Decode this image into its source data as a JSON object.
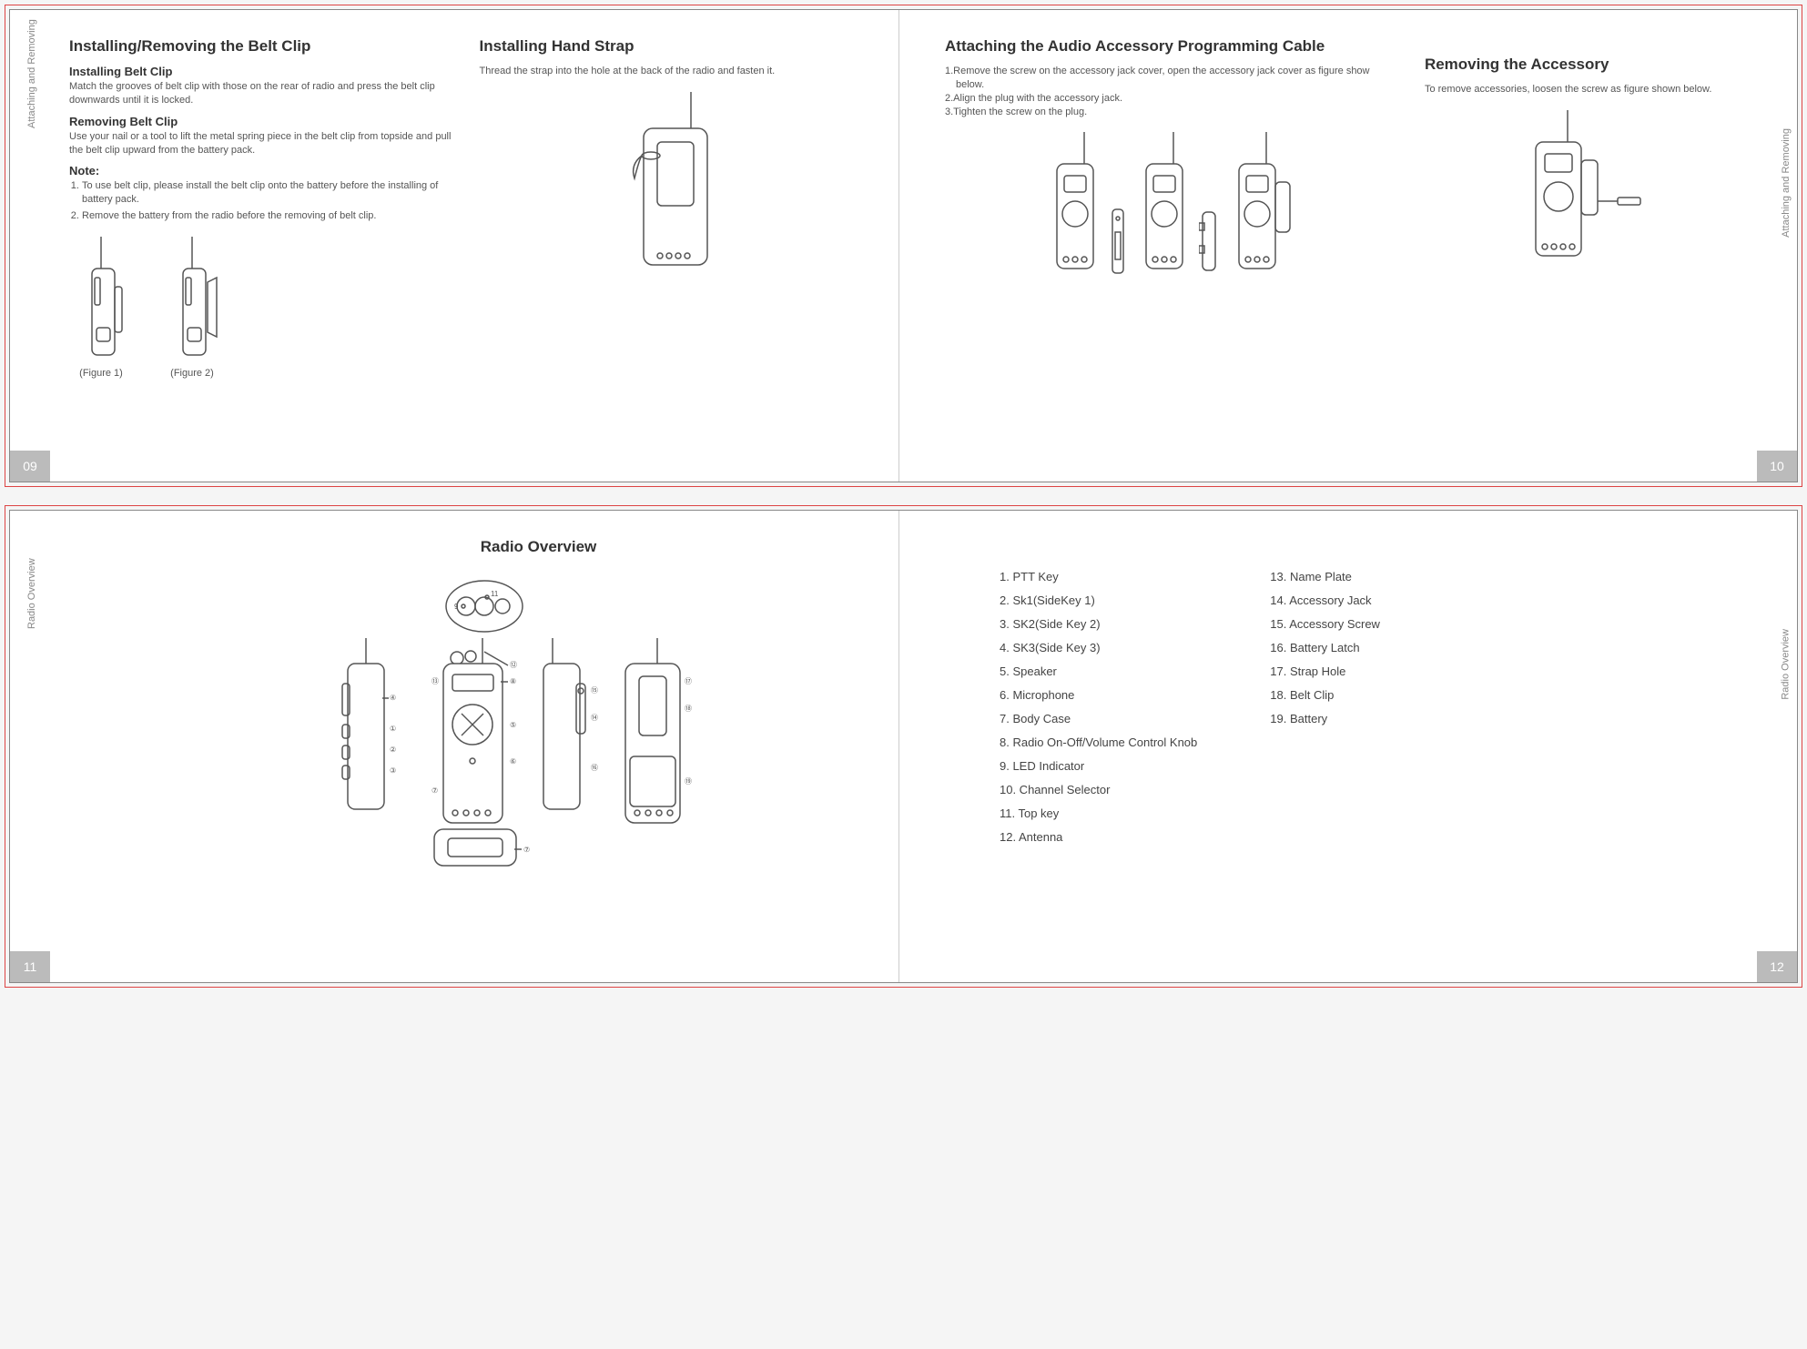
{
  "spread1": {
    "side_label_left": "Attaching and Removing",
    "side_label_right": "Attaching and Removing",
    "page_left_num": "09",
    "page_right_num": "10",
    "page_left": {
      "col1": {
        "h2": "Installing/Removing the Belt Clip",
        "h3a": "Installing Belt Clip",
        "p_a": "Match the grooves of belt clip with those on the rear of radio and press the belt clip downwards until it is locked.",
        "h3b": "Removing Belt Clip",
        "p_b": "Use your nail or a tool to lift the metal spring piece in the belt clip from topside and pull the belt clip upward from the battery pack.",
        "note_label": "Note:",
        "note1": "To use belt clip, please install the belt clip onto the battery before the installing of battery pack.",
        "note2": "Remove the battery from the radio before the removing of belt clip.",
        "fig1": "(Figure 1)",
        "fig2": "(Figure 2)"
      },
      "col2": {
        "h2": "Installing  Hand Strap",
        "p": "Thread the strap into the hole at the back of the radio and fasten it."
      }
    },
    "page_right": {
      "col1": {
        "h2": "Attaching the Audio Accessory Programming Cable",
        "step1": "1.Remove the screw on the accessory jack cover, open the accessory jack cover as figure show below.",
        "step2": "2.Align the plug with the accessory jack.",
        "step3": "3.Tighten the screw on the plug."
      },
      "col2": {
        "h2": "Removing the Accessory",
        "p": "To remove accessories, loosen the screw as figure shown below."
      }
    }
  },
  "spread2": {
    "side_label_left": "Radio Overview",
    "side_label_right": "Radio Overview",
    "page_left_num": "11",
    "page_right_num": "12",
    "title": "Radio Overview",
    "legend_col1": [
      "1.   PTT  Key",
      "2.   Sk1(SideKey  1)",
      "3.   SK2(Side Key 2)",
      "4.   SK3(Side Key 3)",
      "5.   Speaker",
      "6.   Microphone",
      "7.   Body Case",
      "8.   Radio On-Off/Volume Control Knob",
      "9.   LED Indicator",
      "10.   Channel Selector",
      "11.   Top key",
      "12.   Antenna"
    ],
    "legend_col2": [
      "13.   Name Plate",
      "14.   Accessory Jack",
      "15.   Accessory Screw",
      "16.   Battery Latch",
      "17.   Strap  Hole",
      "18.   Belt Clip",
      "19.   Battery"
    ]
  },
  "colors": {
    "text": "#555555",
    "heading": "#333333",
    "page_tab_bg": "#bbbbbb",
    "page_tab_fg": "#ffffff",
    "outline": "#dd4444",
    "border": "#888888"
  }
}
